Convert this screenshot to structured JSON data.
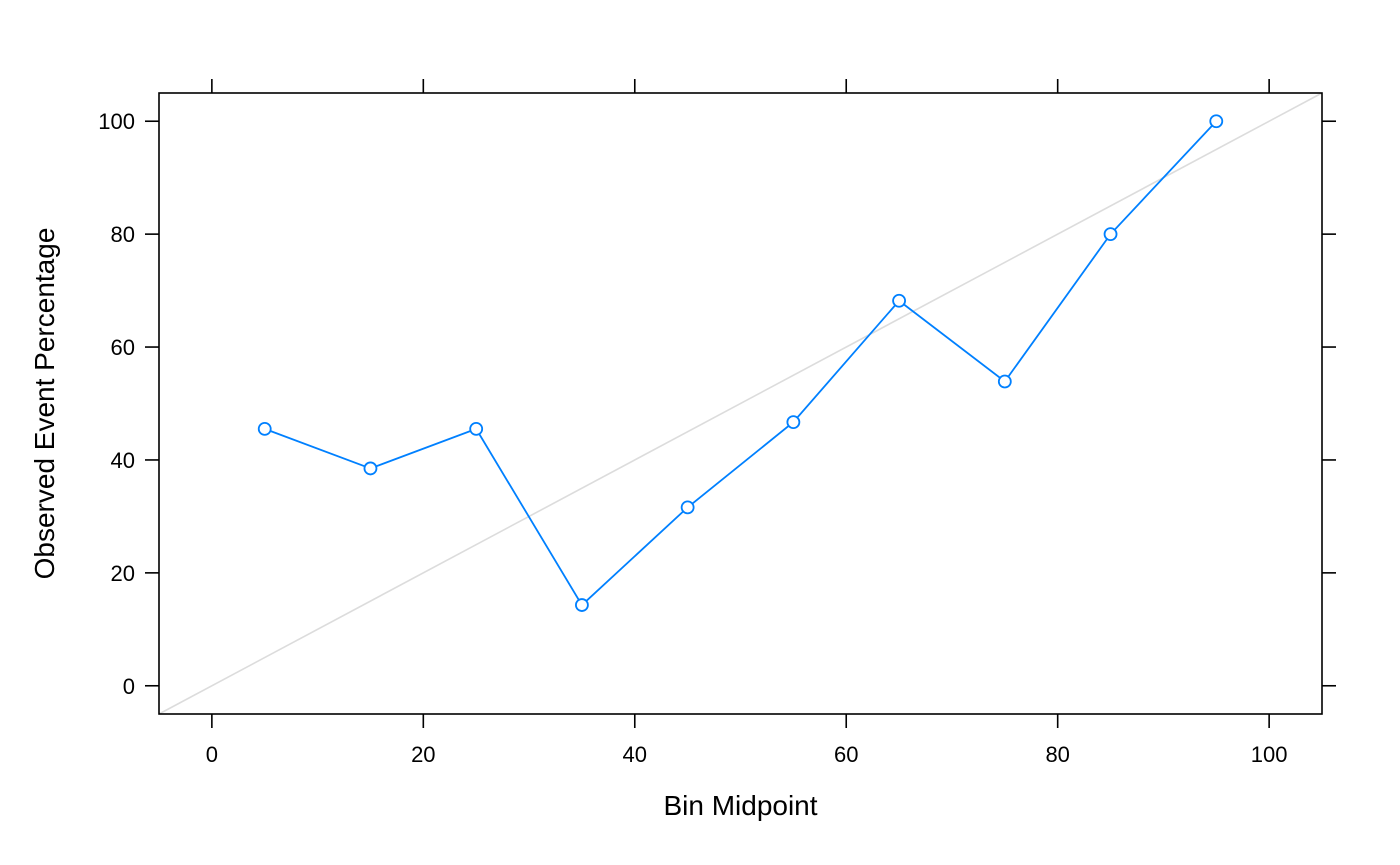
{
  "chart_data": {
    "type": "line",
    "title": "",
    "xlabel": "Bin Midpoint",
    "ylabel": "Observed Event Percentage",
    "xlim": [
      -5,
      105
    ],
    "ylim": [
      -5,
      105
    ],
    "x_ticks": [
      0,
      20,
      40,
      60,
      80,
      100
    ],
    "y_ticks": [
      0,
      20,
      40,
      60,
      80,
      100
    ],
    "grid": false,
    "reference_line": {
      "x": [
        -5,
        105
      ],
      "y": [
        -5,
        105
      ],
      "color": "#dcdcdc"
    },
    "series": [
      {
        "x": [
          5,
          15,
          25,
          35,
          45,
          55,
          65,
          75,
          85,
          95
        ],
        "y": [
          45.5,
          38.5,
          45.5,
          14.3,
          31.6,
          46.7,
          68.2,
          53.9,
          80.0,
          100.0
        ],
        "color": "#0080ff",
        "marker": "open-circle"
      }
    ]
  }
}
